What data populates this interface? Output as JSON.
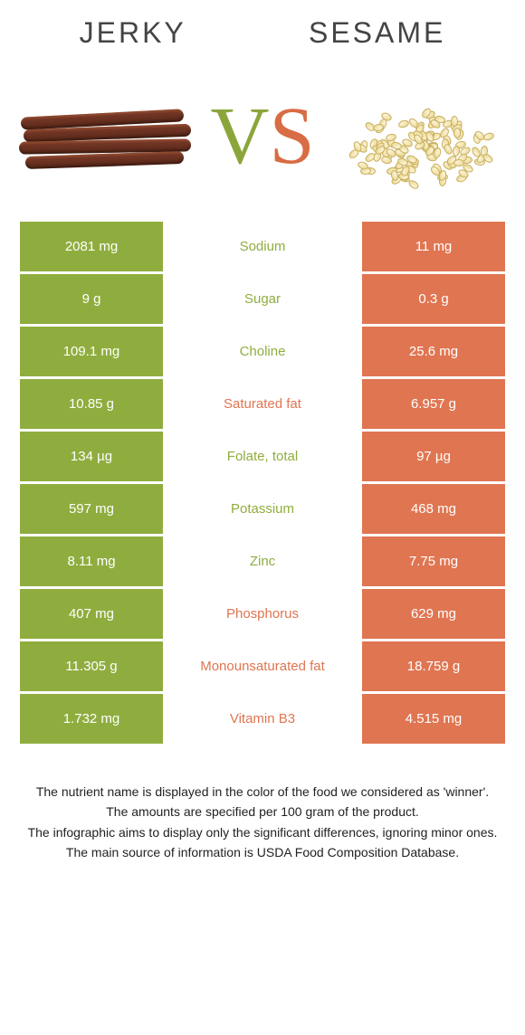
{
  "header": {
    "left_title": "Jerky",
    "right_title": "Sesame",
    "vs_v": "V",
    "vs_s": "S"
  },
  "colors": {
    "green": "#8fad3e",
    "orange": "#e07551",
    "white": "#ffffff"
  },
  "rows": [
    {
      "left": "2081 mg",
      "label": "Sodium",
      "right": "11 mg",
      "winner": "left"
    },
    {
      "left": "9 g",
      "label": "Sugar",
      "right": "0.3 g",
      "winner": "left"
    },
    {
      "left": "109.1 mg",
      "label": "Choline",
      "right": "25.6 mg",
      "winner": "left"
    },
    {
      "left": "10.85 g",
      "label": "Saturated fat",
      "right": "6.957 g",
      "winner": "right"
    },
    {
      "left": "134 µg",
      "label": "Folate, total",
      "right": "97 µg",
      "winner": "left"
    },
    {
      "left": "597 mg",
      "label": "Potassium",
      "right": "468 mg",
      "winner": "left"
    },
    {
      "left": "8.11 mg",
      "label": "Zinc",
      "right": "7.75 mg",
      "winner": "left"
    },
    {
      "left": "407 mg",
      "label": "Phosphorus",
      "right": "629 mg",
      "winner": "right"
    },
    {
      "left": "11.305 g",
      "label": "Monounsaturated fat",
      "right": "18.759 g",
      "winner": "right"
    },
    {
      "left": "1.732 mg",
      "label": "Vitamin B3",
      "right": "4.515 mg",
      "winner": "right"
    }
  ],
  "footer": {
    "line1": "The nutrient name is displayed in the color of the food we considered as 'winner'.",
    "line2": "The amounts are specified per 100 gram of the product.",
    "line3": "The infographic aims to display only the significant differences, ignoring minor ones.",
    "line4": "The main source of information is USDA Food Composition Database."
  }
}
